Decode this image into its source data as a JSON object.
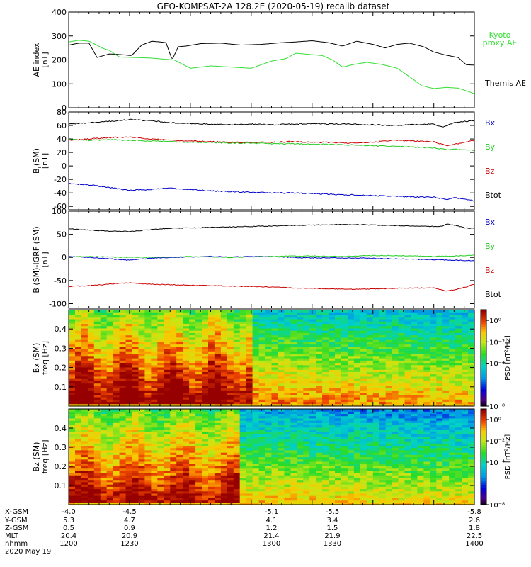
{
  "title": "GEO-KOMPSAT-2A 128.2E (2020-05-19) recalib dataset",
  "colors": {
    "kyoto": "#33dd33",
    "themis": "#000000",
    "bx": "#0000cc",
    "by": "#22cc22",
    "bz": "#cc0000",
    "btot": "#000000"
  },
  "chart_data": [
    {
      "type": "line",
      "panel": "ae",
      "ylabel": [
        "AE index",
        "[nT]"
      ],
      "ylim": [
        0,
        400
      ],
      "yticks": [
        0,
        100,
        200,
        300,
        400
      ],
      "xlim": [
        1200,
        1400
      ],
      "series": [
        {
          "name": "Themis AE",
          "color_key": "themis",
          "x": [
            1200,
            1205,
            1210,
            1214,
            1220,
            1226,
            1231,
            1236,
            1241,
            1245,
            1248,
            1251,
            1254,
            1258,
            1265,
            1275,
            1285,
            1295,
            1305,
            1312,
            1320,
            1328,
            1335,
            1342,
            1350,
            1356,
            1362,
            1368,
            1375,
            1380,
            1386,
            1392,
            1396,
            1400
          ],
          "values": [
            262,
            270,
            270,
            210,
            225,
            222,
            218,
            262,
            278,
            275,
            272,
            200,
            255,
            258,
            268,
            270,
            262,
            265,
            272,
            275,
            280,
            272,
            258,
            278,
            265,
            250,
            265,
            270,
            255,
            233,
            220,
            210,
            180,
            178
          ]
        },
        {
          "name": [
            "Kyoto",
            "proxy AE"
          ],
          "color_key": "kyoto",
          "x": [
            1200,
            1205,
            1210,
            1217,
            1220,
            1225,
            1240,
            1247,
            1252,
            1260,
            1270,
            1280,
            1290,
            1300,
            1307,
            1312,
            1325,
            1330,
            1335,
            1340,
            1347,
            1355,
            1362,
            1370,
            1374,
            1380,
            1386,
            1392,
            1398,
            1400
          ],
          "values": [
            275,
            282,
            278,
            248,
            240,
            212,
            208,
            203,
            200,
            165,
            175,
            170,
            165,
            195,
            205,
            228,
            218,
            200,
            170,
            180,
            190,
            180,
            165,
            118,
            92,
            80,
            85,
            82,
            65,
            58
          ]
        }
      ],
      "right_labels": [
        "Kyoto",
        "proxy AE",
        "Themis AE"
      ]
    },
    {
      "type": "line",
      "panel": "b_sm",
      "ylabel": [
        "B",
        "r",
        "(SM)",
        "[nT]"
      ],
      "ylim": [
        -65,
        80
      ],
      "yticks": [
        -60,
        -40,
        -20,
        0,
        20,
        40,
        60,
        80
      ],
      "xlim": [
        1200,
        1400
      ],
      "series": [
        {
          "name": "Btot",
          "color_key": "btot",
          "x": [
            1200,
            1210,
            1220,
            1230,
            1240,
            1250,
            1260,
            1270,
            1280,
            1290,
            1300,
            1310,
            1320,
            1330,
            1340,
            1350,
            1360,
            1370,
            1380,
            1384,
            1386,
            1390,
            1395,
            1400
          ],
          "values": [
            62,
            64,
            66,
            69,
            67,
            64,
            63,
            62,
            61,
            62,
            61,
            62,
            63,
            62,
            62,
            61,
            60,
            61,
            62,
            58,
            59,
            64,
            66,
            67
          ]
        },
        {
          "name": "By",
          "color_key": "by",
          "x": [
            1200,
            1210,
            1220,
            1230,
            1240,
            1250,
            1260,
            1270,
            1280,
            1290,
            1300,
            1310,
            1320,
            1330,
            1340,
            1350,
            1360,
            1370,
            1380,
            1386,
            1390,
            1395,
            1400
          ],
          "values": [
            40,
            38,
            39,
            38,
            37,
            36,
            35,
            35,
            34,
            34,
            33,
            33,
            32,
            32,
            31,
            30,
            29,
            28,
            27,
            24,
            25,
            24,
            23
          ]
        },
        {
          "name": "Bz",
          "color_key": "bz",
          "x": [
            1200,
            1210,
            1220,
            1230,
            1240,
            1250,
            1260,
            1270,
            1280,
            1290,
            1300,
            1310,
            1320,
            1330,
            1340,
            1350,
            1360,
            1370,
            1380,
            1386,
            1390,
            1395,
            1400
          ],
          "values": [
            38,
            40,
            42,
            43,
            40,
            38,
            37,
            36,
            35,
            35,
            35,
            36,
            35,
            35,
            34,
            35,
            38,
            37,
            36,
            30,
            32,
            35,
            38
          ]
        },
        {
          "name": "Bx",
          "color_key": "bx",
          "x": [
            1200,
            1210,
            1220,
            1230,
            1240,
            1250,
            1260,
            1270,
            1280,
            1290,
            1300,
            1310,
            1320,
            1330,
            1340,
            1350,
            1360,
            1370,
            1380,
            1386,
            1390,
            1395,
            1400
          ],
          "values": [
            -26,
            -28,
            -32,
            -36,
            -35,
            -33,
            -35,
            -37,
            -38,
            -39,
            -40,
            -40,
            -41,
            -42,
            -43,
            -44,
            -45,
            -46,
            -46,
            -50,
            -47,
            -49,
            -52
          ]
        }
      ],
      "right_labels": [
        "Bx",
        "By",
        "Bz",
        "Btot"
      ]
    },
    {
      "type": "line",
      "panel": "b_minus_igrf",
      "ylabel": [
        "B (SM)-IGRF (SM)",
        "[nT]"
      ],
      "ylim": [
        -110,
        100
      ],
      "yticks": [
        -100,
        -50,
        0,
        50,
        100
      ],
      "xlim": [
        1200,
        1400
      ],
      "series": [
        {
          "name": "Btot",
          "color_key": "btot",
          "x": [
            1200,
            1210,
            1220,
            1230,
            1240,
            1250,
            1260,
            1270,
            1280,
            1290,
            1300,
            1310,
            1320,
            1330,
            1340,
            1350,
            1360,
            1370,
            1380,
            1384,
            1386,
            1390,
            1395,
            1400
          ],
          "values": [
            62,
            59,
            57,
            56,
            60,
            63,
            64,
            65,
            66,
            67,
            68,
            69,
            70,
            71,
            71,
            70,
            69,
            68,
            67,
            68,
            72,
            70,
            64,
            63
          ]
        },
        {
          "name": "Bx",
          "color_key": "bx",
          "x": [
            1200,
            1210,
            1220,
            1230,
            1240,
            1250,
            1260,
            1270,
            1280,
            1290,
            1300,
            1310,
            1320,
            1330,
            1340,
            1350,
            1360,
            1370,
            1380,
            1390,
            1400
          ],
          "values": [
            2,
            0,
            -3,
            -6,
            -2,
            0,
            1,
            2,
            1,
            2,
            2,
            0,
            -1,
            -1,
            -1,
            -2,
            -3,
            -4,
            -5,
            -6,
            -7
          ]
        },
        {
          "name": "By",
          "color_key": "by",
          "x": [
            1200,
            1210,
            1220,
            1230,
            1240,
            1250,
            1260,
            1270,
            1280,
            1290,
            1300,
            1310,
            1320,
            1330,
            1340,
            1350,
            1360,
            1370,
            1380,
            1390,
            1400
          ],
          "values": [
            1,
            2,
            1,
            0,
            0,
            1,
            2,
            1,
            0,
            1,
            2,
            3,
            3,
            2,
            3,
            4,
            4,
            3,
            2,
            3,
            5
          ]
        },
        {
          "name": "Bz",
          "color_key": "bz",
          "x": [
            1200,
            1210,
            1220,
            1230,
            1240,
            1250,
            1260,
            1270,
            1280,
            1290,
            1300,
            1310,
            1320,
            1330,
            1340,
            1350,
            1360,
            1370,
            1380,
            1384,
            1386,
            1390,
            1395,
            1400
          ],
          "values": [
            -63,
            -61,
            -58,
            -55,
            -58,
            -59,
            -60,
            -61,
            -62,
            -63,
            -64,
            -66,
            -67,
            -68,
            -69,
            -68,
            -67,
            -66,
            -66,
            -70,
            -73,
            -70,
            -65,
            -58
          ]
        }
      ],
      "right_labels": [
        "Bx",
        "By",
        "Bz",
        "Btot"
      ]
    },
    {
      "type": "heatmap",
      "panel": "bx_spec",
      "ylabel": [
        "Bx (SM)",
        "freq [Hz]"
      ],
      "ylim": [
        0,
        0.5
      ],
      "yticks": [
        0.1,
        0.2,
        0.3,
        0.4
      ],
      "xlim": [
        1200,
        1400
      ],
      "colorbar_label": "PSD [nT²/Hz]",
      "colorbar_log_range": [
        -8,
        1
      ],
      "colorbar_ticks": [
        "10⁰",
        "10⁻²",
        "10⁻⁴",
        "10⁻⁸"
      ]
    },
    {
      "type": "heatmap",
      "panel": "bz_spec",
      "ylabel": [
        "Bz (SM)",
        "freq [Hz]"
      ],
      "ylim": [
        0,
        0.5
      ],
      "yticks": [
        0.1,
        0.2,
        0.3,
        0.4
      ],
      "xlim": [
        1200,
        1400
      ],
      "colorbar_label": "PSD [nT²/Hz]",
      "colorbar_log_range": [
        -8,
        1
      ],
      "colorbar_ticks": [
        "10⁰",
        "10⁻²",
        "10⁻⁴",
        "10⁻⁸"
      ]
    }
  ],
  "orbit_table": {
    "labels": [
      "X-GSM",
      "Y-GSM",
      "Z-GSM",
      "MLT",
      "hhmm"
    ],
    "columns": [
      {
        "time": 1200,
        "values": [
          "-4.0",
          "5.3",
          "0.5",
          "20.4",
          "1200"
        ]
      },
      {
        "time": 1230,
        "values": [
          "-4.5",
          "4.7",
          "0.9",
          "20.9",
          "1230"
        ]
      },
      {
        "time": 1300,
        "values": [
          "-5.1",
          "4.1",
          "1.2",
          "21.4",
          "1300"
        ]
      },
      {
        "time": 1330,
        "values": [
          "-5.5",
          "3.4",
          "1.5",
          "21.9",
          "1330"
        ]
      },
      {
        "time": 1400,
        "values": [
          "-5.8",
          "2.6",
          "1.8",
          "22.5",
          "1400"
        ]
      }
    ],
    "date": "2020 May 19"
  }
}
